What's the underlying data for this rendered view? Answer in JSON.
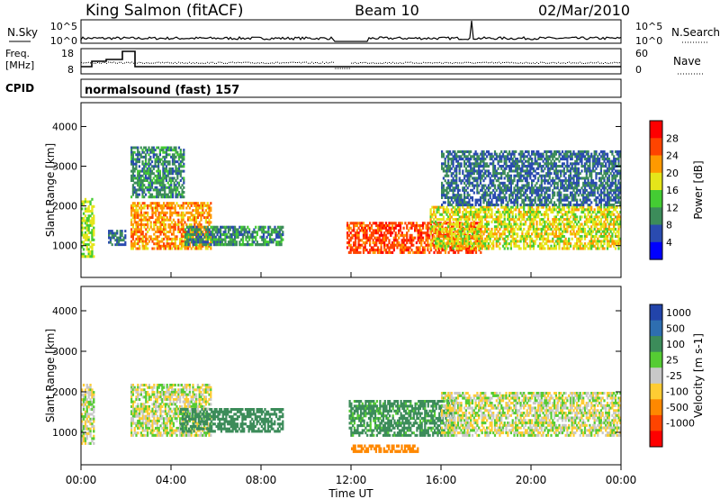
{
  "header": {
    "station": "King Salmon (fitACF)",
    "beam": "Beam 10",
    "date": "02/Mar/2010"
  },
  "top_panels": {
    "nsky_label": "N.Sky",
    "nsky_ticks": [
      "10^5",
      "10^0"
    ],
    "nsearch_label": "N.Search",
    "nsearch_ticks": [
      "10^5",
      "10^0"
    ],
    "freq_label": "Freq.",
    "freq_unit": "[MHz]",
    "freq_ticks": [
      "18",
      "8"
    ],
    "nave_label": "Nave",
    "nave_ticks": [
      "60",
      "0"
    ],
    "cpid_label": "CPID",
    "cpid_value": "normalsound (fast) 157"
  },
  "chart_data": [
    {
      "type": "heatmap",
      "name": "Power",
      "ylabel": "Slant Range [km]",
      "ylim": [
        200,
        4600
      ],
      "yticks": [
        1000,
        2000,
        3000,
        4000
      ],
      "xlim": [
        "00:00",
        "24:00"
      ],
      "colorbar_label": "Power [dB]",
      "colorbar_ticks": [
        4,
        8,
        12,
        16,
        20,
        24,
        28
      ],
      "colorbar_colors": [
        "#0000ff",
        "#2a4bb0",
        "#3c8c5a",
        "#44cc33",
        "#e5e51a",
        "#ff9900",
        "#ff4400",
        "#ff0000"
      ],
      "echo_regions": [
        {
          "t0": 0.0,
          "t1": 0.6,
          "r0": 700,
          "r1": 2200,
          "value": 16
        },
        {
          "t0": 1.2,
          "t1": 2.0,
          "r0": 1000,
          "r1": 1400,
          "value": 8
        },
        {
          "t0": 2.2,
          "t1": 5.8,
          "r0": 900,
          "r1": 2100,
          "value": 22
        },
        {
          "t0": 2.2,
          "t1": 4.6,
          "r0": 2200,
          "r1": 3500,
          "value": 10
        },
        {
          "t0": 4.6,
          "t1": 9.0,
          "r0": 1000,
          "r1": 1500,
          "value": 10
        },
        {
          "t0": 11.8,
          "t1": 17.8,
          "r0": 800,
          "r1": 1600,
          "value": 26
        },
        {
          "t0": 15.5,
          "t1": 24.0,
          "r0": 900,
          "r1": 2000,
          "value": 18
        },
        {
          "t0": 16.0,
          "t1": 24.0,
          "r0": 2000,
          "r1": 3400,
          "value": 8
        }
      ]
    },
    {
      "type": "heatmap",
      "name": "Velocity",
      "ylabel": "Slant Range [km]",
      "ylim": [
        200,
        4600
      ],
      "yticks": [
        1000,
        2000,
        3000,
        4000
      ],
      "xlim": [
        "00:00",
        "24:00"
      ],
      "xticks": [
        "00:00",
        "04:00",
        "08:00",
        "12:00",
        "16:00",
        "20:00",
        "00:00"
      ],
      "xlabel": "Time UT",
      "colorbar_label": "Velocity [m s-1]",
      "colorbar_ticks": [
        "1000",
        "500",
        "100",
        "25",
        "-25",
        "-100",
        "-500",
        "-1000"
      ],
      "colorbar_colors": [
        "#2244aa",
        "#2e6eb0",
        "#3c8c5a",
        "#55cc33",
        "#c8c8c8",
        "#ffcc33",
        "#ff8800",
        "#ff4400",
        "#ff0000"
      ],
      "echo_regions": [
        {
          "t0": 0.0,
          "t1": 0.6,
          "r0": 700,
          "r1": 2200,
          "value": 0
        },
        {
          "t0": 2.2,
          "t1": 5.8,
          "r0": 900,
          "r1": 2200,
          "value": 0
        },
        {
          "t0": 4.4,
          "t1": 9.0,
          "r0": 1000,
          "r1": 1600,
          "value": 200
        },
        {
          "t0": 11.9,
          "t1": 16.6,
          "r0": 900,
          "r1": 1800,
          "value": 150
        },
        {
          "t0": 12.0,
          "t1": 15.0,
          "r0": 500,
          "r1": 700,
          "value": -300
        },
        {
          "t0": 16.0,
          "t1": 24.0,
          "r0": 900,
          "r1": 2000,
          "value": 0
        }
      ]
    }
  ]
}
